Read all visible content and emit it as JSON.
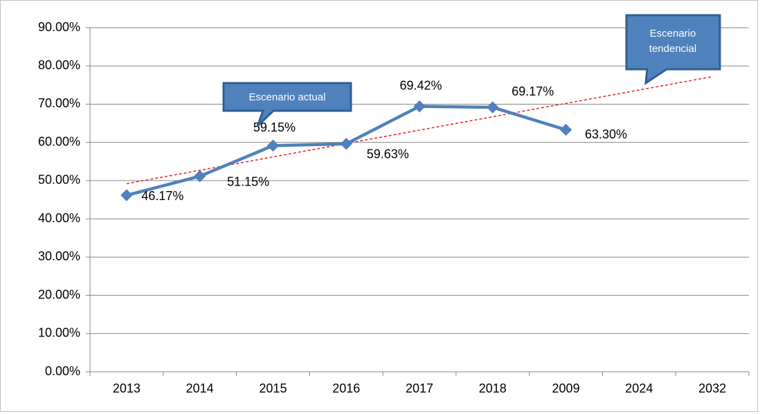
{
  "chart_data": {
    "type": "line",
    "categories": [
      "2013",
      "2014",
      "2015",
      "2016",
      "2017",
      "2018",
      "2009",
      "2024",
      "2032"
    ],
    "series": [
      {
        "color": "#4f81bd",
        "values": [
          46.17,
          51.15,
          59.15,
          59.63,
          69.42,
          69.17,
          63.3,
          null,
          null
        ],
        "value_labels": [
          "46.17%",
          "51.15%",
          "59.15%",
          "59.63%",
          "69.42%",
          "69.17%",
          "63.30%",
          null,
          null
        ]
      }
    ],
    "trendline": {
      "start": 49.2,
      "end": 77.2,
      "color": "#e8201f"
    },
    "ylim": [
      0,
      90
    ],
    "yticks": [
      {
        "value": 0,
        "label": "0.00%"
      },
      {
        "value": 10,
        "label": "10.00%"
      },
      {
        "value": 20,
        "label": "20.00%"
      },
      {
        "value": 30,
        "label": "30.00%"
      },
      {
        "value": 40,
        "label": "40.00%"
      },
      {
        "value": 50,
        "label": "50.00%"
      },
      {
        "value": 60,
        "label": "60.00%"
      },
      {
        "value": 70,
        "label": "70.00%"
      },
      {
        "value": 80,
        "label": "80.00%"
      },
      {
        "value": 90,
        "label": "90.00%"
      }
    ],
    "grid": true,
    "annotations": [
      "Escenario actual",
      "Escenario tendencial"
    ]
  }
}
